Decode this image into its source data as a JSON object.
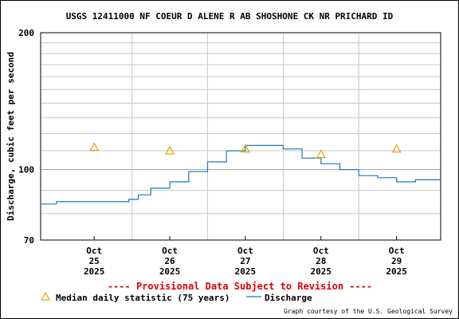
{
  "chart_data": {
    "type": "line",
    "title": "USGS 12411000 NF COEUR D ALENE R AB SHOSHONE CK NR PRICHARD ID",
    "ylabel": "Discharge, cubic feet per second",
    "y_scale": "log",
    "ylim": [
      70,
      200
    ],
    "y_ticks": [
      "200",
      "100",
      "70"
    ],
    "xlim": [
      "2025-10-24T19:00",
      "2025-10-30T02:00"
    ],
    "x_ticks": [
      {
        "date": "2025-10-25T12:00",
        "l1": "Oct",
        "l2": "25",
        "l3": "2025"
      },
      {
        "date": "2025-10-26T12:00",
        "l1": "Oct",
        "l2": "26",
        "l3": "2025"
      },
      {
        "date": "2025-10-27T12:00",
        "l1": "Oct",
        "l2": "27",
        "l3": "2025"
      },
      {
        "date": "2025-10-28T12:00",
        "l1": "Oct",
        "l2": "28",
        "l3": "2025"
      },
      {
        "date": "2025-10-29T12:00",
        "l1": "Oct",
        "l2": "29",
        "l3": "2025"
      }
    ],
    "provisional_note": "---- Provisional Data Subject to Revision ----",
    "legend": {
      "median_label": "Median daily statistic (75 years)",
      "discharge_label": "Discharge"
    },
    "credit": "Graph courtesy of the U.S. Geological Survey",
    "colors": {
      "discharge": "#1a7ab0",
      "median": "#e6a100",
      "provisional": "#e00000"
    },
    "median_points": [
      {
        "x": "2025-10-25T12:00",
        "y": 112
      },
      {
        "x": "2025-10-26T12:00",
        "y": 110
      },
      {
        "x": "2025-10-27T12:00",
        "y": 111
      },
      {
        "x": "2025-10-28T12:00",
        "y": 108
      },
      {
        "x": "2025-10-29T12:00",
        "y": 111
      }
    ],
    "series": [
      {
        "name": "Discharge",
        "points": [
          {
            "x": "2025-10-24T19:00",
            "y": 84
          },
          {
            "x": "2025-10-25T00:00",
            "y": 85
          },
          {
            "x": "2025-10-25T06:00",
            "y": 85
          },
          {
            "x": "2025-10-25T12:00",
            "y": 85
          },
          {
            "x": "2025-10-25T18:00",
            "y": 85
          },
          {
            "x": "2025-10-25T23:00",
            "y": 86
          },
          {
            "x": "2025-10-26T02:00",
            "y": 88
          },
          {
            "x": "2025-10-26T06:00",
            "y": 91
          },
          {
            "x": "2025-10-26T12:00",
            "y": 94
          },
          {
            "x": "2025-10-26T18:00",
            "y": 99
          },
          {
            "x": "2025-10-27T00:00",
            "y": 104
          },
          {
            "x": "2025-10-27T06:00",
            "y": 110
          },
          {
            "x": "2025-10-27T12:00",
            "y": 113
          },
          {
            "x": "2025-10-27T18:00",
            "y": 113
          },
          {
            "x": "2025-10-28T00:00",
            "y": 111
          },
          {
            "x": "2025-10-28T06:00",
            "y": 106
          },
          {
            "x": "2025-10-28T12:00",
            "y": 103
          },
          {
            "x": "2025-10-28T18:00",
            "y": 100
          },
          {
            "x": "2025-10-29T00:00",
            "y": 97
          },
          {
            "x": "2025-10-29T06:00",
            "y": 96
          },
          {
            "x": "2025-10-29T12:00",
            "y": 94
          },
          {
            "x": "2025-10-29T18:00",
            "y": 95
          },
          {
            "x": "2025-10-30T02:00",
            "y": 95
          }
        ]
      }
    ]
  }
}
